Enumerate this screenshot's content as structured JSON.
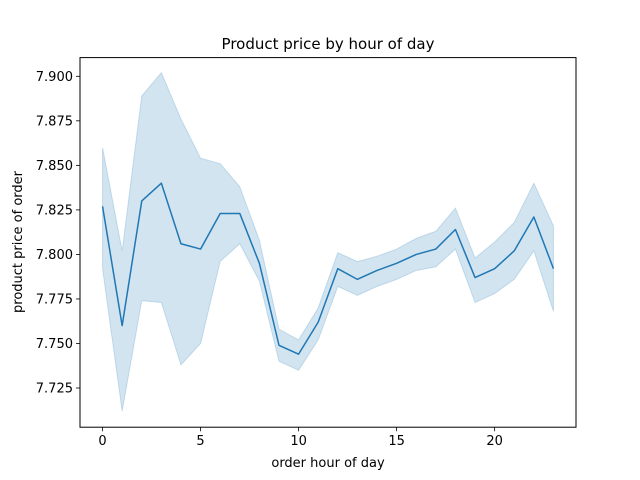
{
  "chart_data": {
    "type": "line",
    "title": "Product price by hour of day",
    "xlabel": "order hour of day",
    "ylabel": "product price of order",
    "xlim": [
      -1.15,
      24.15
    ],
    "ylim": [
      7.703,
      7.9105
    ],
    "xticks": [
      0,
      5,
      10,
      15,
      20
    ],
    "yticks": [
      7.725,
      7.75,
      7.775,
      7.8,
      7.825,
      7.85,
      7.875,
      7.9
    ],
    "ytick_labels": [
      "7.725",
      "7.750",
      "7.775",
      "7.800",
      "7.825",
      "7.850",
      "7.875",
      "7.900"
    ],
    "grid": false,
    "x": [
      0,
      1,
      2,
      3,
      4,
      5,
      6,
      7,
      8,
      9,
      10,
      11,
      12,
      13,
      14,
      15,
      16,
      17,
      18,
      19,
      20,
      21,
      22,
      23
    ],
    "series": [
      {
        "values": [
          7.827,
          7.76,
          7.83,
          7.84,
          7.806,
          7.803,
          7.823,
          7.823,
          7.795,
          7.749,
          7.744,
          7.762,
          7.792,
          7.786,
          7.791,
          7.795,
          7.8,
          7.803,
          7.814,
          7.787,
          7.792,
          7.802,
          7.821,
          7.792
        ],
        "ci_low": [
          7.792,
          7.712,
          7.774,
          7.773,
          7.738,
          7.75,
          7.796,
          7.806,
          7.785,
          7.74,
          7.735,
          7.752,
          7.782,
          7.777,
          7.782,
          7.786,
          7.791,
          7.793,
          7.803,
          7.773,
          7.778,
          7.786,
          7.802,
          7.768
        ],
        "ci_high": [
          7.86,
          7.802,
          7.889,
          7.902,
          7.876,
          7.854,
          7.851,
          7.838,
          7.808,
          7.758,
          7.752,
          7.77,
          7.801,
          7.796,
          7.799,
          7.803,
          7.809,
          7.813,
          7.826,
          7.798,
          7.807,
          7.818,
          7.84,
          7.816
        ],
        "color": "#1f77b4",
        "band_color": "#1f77b4"
      }
    ]
  }
}
